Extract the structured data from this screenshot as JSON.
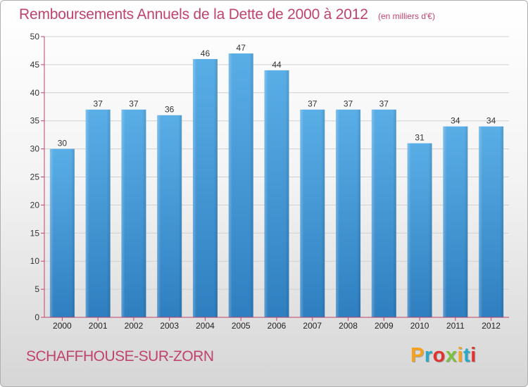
{
  "header": {
    "title": "Remboursements Annuels de la Dette de 2000 à 2012",
    "subtitle": "(en milliers d'€)"
  },
  "footer": {
    "commune": "SCHAFFHOUSE-SUR-ZORN",
    "logo_text": "Proxiti",
    "logo_letters": [
      {
        "char": "P",
        "color": "#f7a21b"
      },
      {
        "char": "r",
        "color": "#2aa8c9"
      },
      {
        "char": "o",
        "color": "#e0332f"
      },
      {
        "char": "x",
        "color": "#7cc142"
      },
      {
        "char": "i",
        "color": "#f7a21b"
      },
      {
        "char": "t",
        "color": "#2aa8c9"
      },
      {
        "char": "i",
        "color": "#e0332f"
      }
    ]
  },
  "colors": {
    "accent": "#c0436b",
    "bar_top": "#5aaee6",
    "bar_bottom": "#2f7fc0",
    "axis": "#c0436b"
  },
  "chart_data": {
    "type": "bar",
    "title": "Remboursements Annuels de la Dette de 2000 à 2012",
    "subtitle": "(en milliers d'€)",
    "xlabel": "",
    "ylabel": "",
    "categories": [
      "2000",
      "2001",
      "2002",
      "2003",
      "2004",
      "2005",
      "2006",
      "2007",
      "2008",
      "2009",
      "2010",
      "2011",
      "2012"
    ],
    "values": [
      30,
      37,
      37,
      36,
      46,
      47,
      44,
      37,
      37,
      37,
      31,
      34,
      34
    ],
    "ylim": [
      0,
      50
    ],
    "yticks": [
      0,
      5,
      10,
      15,
      20,
      25,
      30,
      35,
      40,
      45,
      50
    ],
    "grid": true,
    "data_labels": true
  }
}
